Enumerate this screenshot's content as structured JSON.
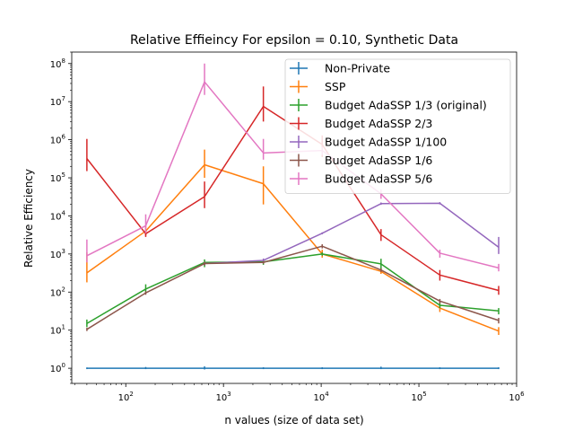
{
  "chart_data": {
    "type": "line",
    "title": "Relative Effieincy For epsilon = 0.10, Synthetic Data",
    "xlabel": "n values (size of data set)",
    "ylabel": "Relative Efficiency",
    "xscale": "log",
    "yscale": "log",
    "xlim": [
      28,
      1000000
    ],
    "ylim": [
      0.4,
      200000000
    ],
    "x_ticks": [
      {
        "value": 100,
        "base": "10",
        "exp": "2"
      },
      {
        "value": 1000,
        "base": "10",
        "exp": "3"
      },
      {
        "value": 10000,
        "base": "10",
        "exp": "4"
      },
      {
        "value": 100000,
        "base": "10",
        "exp": "5"
      },
      {
        "value": 1000000,
        "base": "10",
        "exp": "6"
      }
    ],
    "y_ticks": [
      {
        "value": 1,
        "base": "10",
        "exp": "0"
      },
      {
        "value": 10,
        "base": "10",
        "exp": "1"
      },
      {
        "value": 100,
        "base": "10",
        "exp": "2"
      },
      {
        "value": 1000,
        "base": "10",
        "exp": "3"
      },
      {
        "value": 10000,
        "base": "10",
        "exp": "4"
      },
      {
        "value": 100000,
        "base": "10",
        "exp": "5"
      },
      {
        "value": 1000000,
        "base": "10",
        "exp": "6"
      },
      {
        "value": 10000000,
        "base": "10",
        "exp": "7"
      },
      {
        "value": 100000000,
        "base": "10",
        "exp": "8"
      }
    ],
    "grid": false,
    "legend_position": "top-right",
    "x": [
      40,
      160,
      640,
      2560,
      10240,
      40960,
      163840,
      655360
    ],
    "series": [
      {
        "name": "Non-Private",
        "color": "#1f77b4",
        "values": [
          1,
          1,
          1,
          1,
          1,
          1,
          1,
          1
        ],
        "err_low": [
          0.95,
          0.95,
          0.93,
          0.95,
          0.95,
          0.95,
          0.95,
          0.95
        ],
        "err_high": [
          1.05,
          1.08,
          1.12,
          1.06,
          1.06,
          1.1,
          1.06,
          1.06
        ]
      },
      {
        "name": "SSP",
        "color": "#ff7f0e",
        "values": [
          320,
          4000,
          220000,
          70000,
          1000,
          350,
          38,
          9.5
        ],
        "err_low": [
          180,
          3000,
          100000,
          20000,
          800,
          300,
          30,
          7.5
        ],
        "err_high": [
          1100,
          5500,
          550000,
          200000,
          1300,
          420,
          48,
          12
        ]
      },
      {
        "name": "Budget AdaSSP 1/3 (original)",
        "color": "#2ca02c",
        "values": [
          15,
          120,
          600,
          620,
          1000,
          550,
          45,
          32
        ],
        "err_low": [
          12,
          95,
          450,
          520,
          900,
          380,
          38,
          26
        ],
        "err_high": [
          19,
          160,
          720,
          700,
          1100,
          750,
          55,
          38
        ]
      },
      {
        "name": "Budget AdaSSP 2/3",
        "color": "#d62728",
        "values": [
          320000,
          3400,
          32000,
          7500000,
          750000,
          3200,
          280,
          110
        ],
        "err_low": [
          150000,
          2800,
          16000,
          3000000,
          350000,
          2200,
          200,
          85
        ],
        "err_high": [
          1050000,
          4400,
          80000,
          25000000,
          1300000,
          4500,
          380,
          145
        ]
      },
      {
        "name": "Budget AdaSSP 1/100",
        "color": "#9467bd",
        "values": [
          null,
          null,
          560,
          680,
          3500,
          21000,
          21500,
          1500
        ],
        "err_low": [
          null,
          null,
          510,
          600,
          3300,
          19500,
          20000,
          1000
        ],
        "err_high": [
          null,
          null,
          620,
          760,
          3700,
          22500,
          23000,
          2800
        ]
      },
      {
        "name": "Budget AdaSSP 1/6",
        "color": "#8c564b",
        "values": [
          10.5,
          95,
          560,
          600,
          1600,
          380,
          58,
          18
        ],
        "err_low": [
          9.5,
          85,
          500,
          550,
          1400,
          340,
          50,
          15
        ],
        "err_high": [
          11.5,
          105,
          620,
          650,
          1800,
          420,
          66,
          21
        ]
      },
      {
        "name": "Budget AdaSSP 5/6",
        "color": "#e377c2",
        "values": [
          900,
          5500,
          33000000,
          450000,
          520000,
          38000,
          1050,
          430
        ],
        "err_low": [
          600,
          3500,
          15000000,
          300000,
          400000,
          28000,
          800,
          350
        ],
        "err_high": [
          2400,
          11000,
          100000000,
          1050000,
          650000,
          50000,
          1300,
          550
        ]
      }
    ]
  }
}
